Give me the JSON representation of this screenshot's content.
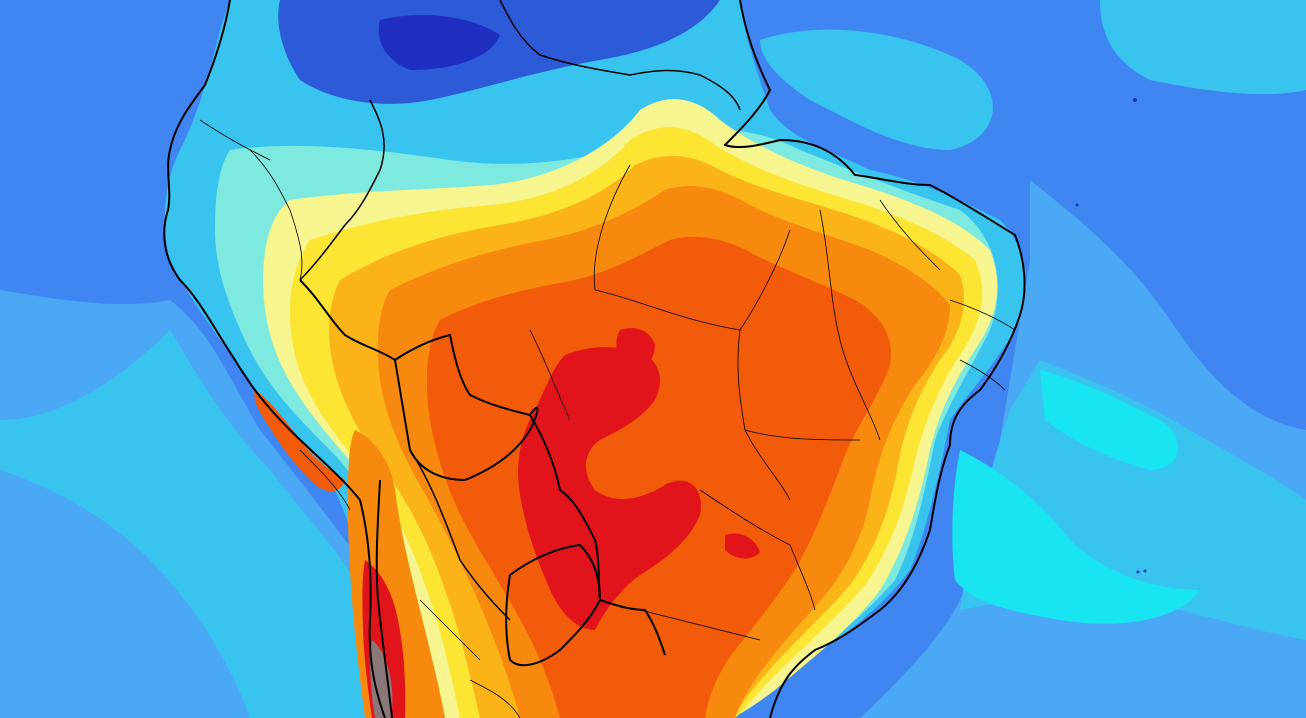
{
  "map": {
    "type": "weather-field-map",
    "region": "South America",
    "palette": {
      "ocean_deep": "#3f86f2",
      "ocean_mid": "#4aa8f4",
      "ocean_light": "#39c4f0",
      "cyan": "#18e4f2",
      "aqua": "#7eeadf",
      "pale_yellow": "#f6f58f",
      "yellow": "#fce533",
      "gold": "#fbb417",
      "orange": "#f7890e",
      "dark_orange": "#f25b0a",
      "red": "#e2141b",
      "grey": "#8a7777",
      "cold_blue": "#2d5bd8",
      "navy": "#1e2fc0"
    },
    "borders": {
      "color": "#000000"
    },
    "islands": [
      {
        "name": "marker-1"
      },
      {
        "name": "marker-2"
      },
      {
        "name": "marker-3"
      },
      {
        "name": "marker-4"
      }
    ]
  }
}
